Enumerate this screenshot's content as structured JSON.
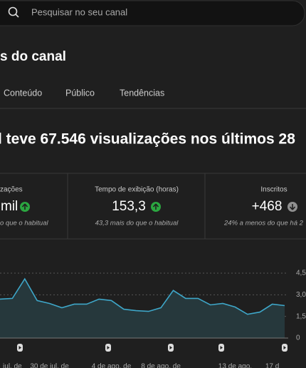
{
  "header": {
    "search_placeholder": "Pesquisar no seu canal",
    "title": "s do canal"
  },
  "tabs": [
    "Conteúdo",
    "Público",
    "Tendências"
  ],
  "headline": "l teve 67.546 visualizações nos últimos 28",
  "metrics": [
    {
      "label": "zações",
      "value": "mil",
      "note": "o que o habitual"
    },
    {
      "label": "Tempo de exibição (horas)",
      "value": "153,3",
      "note": "43,3 mais do que o habitual"
    },
    {
      "label": "Inscritos",
      "value": "+468",
      "note": "24% a menos do que há 2"
    }
  ],
  "chart_data": {
    "type": "line",
    "color": "#3ea6c8",
    "categories": [
      null,
      "jul. de",
      null,
      null,
      "30 de jul. de",
      null,
      null,
      null,
      null,
      "4 de ago. de",
      null,
      null,
      null,
      "8 de ago. de",
      null,
      null,
      null,
      null,
      null,
      "13 de ago.",
      null,
      null,
      "17 d",
      null
    ],
    "values": [
      2.7,
      2.75,
      4.1,
      2.6,
      2.4,
      2.1,
      2.35,
      2.35,
      2.7,
      2.6,
      2.0,
      1.9,
      1.85,
      2.1,
      3.3,
      2.75,
      2.75,
      2.3,
      2.4,
      2.15,
      1.65,
      1.8,
      2.35,
      2.25
    ],
    "ylim": [
      0,
      4.5
    ],
    "yticks": [
      0,
      {
        "value": 1.5,
        "label": "1,5"
      },
      {
        "value": 3,
        "label": "3,0"
      },
      {
        "value": 4.5,
        "label": "4,5"
      }
    ]
  }
}
